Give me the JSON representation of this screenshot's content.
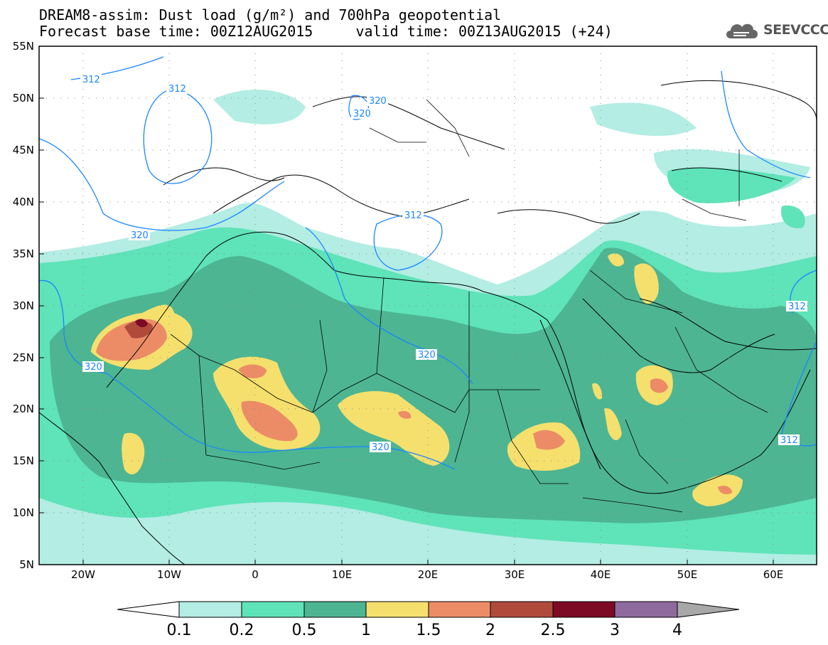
{
  "title": {
    "line1": "DREAM8-assim: Dust load (g/m²) and 700hPa geopotential",
    "line2": "Forecast base time: 00Z12AUG2015     valid time: 00Z13AUG2015 (+24)"
  },
  "logo": {
    "text": "SEEVCCC",
    "icon": "cloud-icon"
  },
  "map": {
    "lon_range": [
      -25,
      65
    ],
    "lat_range": [
      5,
      55
    ],
    "lat_ticks": [
      "55N",
      "50N",
      "45N",
      "40N",
      "35N",
      "30N",
      "25N",
      "20N",
      "15N",
      "10N",
      "5N"
    ],
    "lon_ticks": [
      "20W",
      "10W",
      "0",
      "10E",
      "20E",
      "30E",
      "40E",
      "50E",
      "60E"
    ],
    "contour_labels": [
      "312",
      "312",
      "320",
      "320",
      "320",
      "312",
      "312",
      "320",
      "320",
      "320",
      "312"
    ]
  },
  "colorbar": {
    "labels": [
      "0.1",
      "0.2",
      "0.5",
      "1",
      "1.5",
      "2",
      "2.5",
      "3",
      "4"
    ],
    "colors": [
      "#ffffff",
      "#b3ede3",
      "#5fe3b9",
      "#4db592",
      "#f5e06e",
      "#ec8c66",
      "#b04b3c",
      "#7d0b25",
      "#8e6a9e",
      "#a8a8a8"
    ]
  }
}
